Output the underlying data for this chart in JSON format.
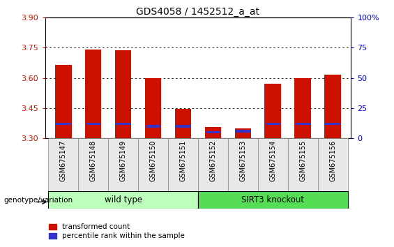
{
  "title": "GDS4058 / 1452512_a_at",
  "samples": [
    "GSM675147",
    "GSM675148",
    "GSM675149",
    "GSM675150",
    "GSM675151",
    "GSM675152",
    "GSM675153",
    "GSM675154",
    "GSM675155",
    "GSM675156"
  ],
  "transformed_count": [
    3.665,
    3.74,
    3.737,
    3.597,
    3.445,
    3.355,
    3.348,
    3.572,
    3.597,
    3.615
  ],
  "percentile_rank": [
    12,
    12,
    12,
    10,
    10,
    5,
    6,
    12,
    12,
    12
  ],
  "ymin": 3.3,
  "ymax": 3.9,
  "yticks": [
    3.3,
    3.45,
    3.6,
    3.75,
    3.9
  ],
  "right_yticks": [
    0,
    25,
    50,
    75,
    100
  ],
  "wild_type_count": 5,
  "knockout_count": 5,
  "group_labels": [
    "wild type",
    "SIRT3 knockout"
  ],
  "bar_color": "#cc1100",
  "blue_color": "#3333cc",
  "wild_type_bg": "#bbffbb",
  "knockout_bg": "#55dd55",
  "tick_color_left": "#cc1100",
  "tick_color_right": "#0000cc",
  "grid_color": "#000000",
  "bar_width": 0.55,
  "genotype_label": "genotype/variation"
}
